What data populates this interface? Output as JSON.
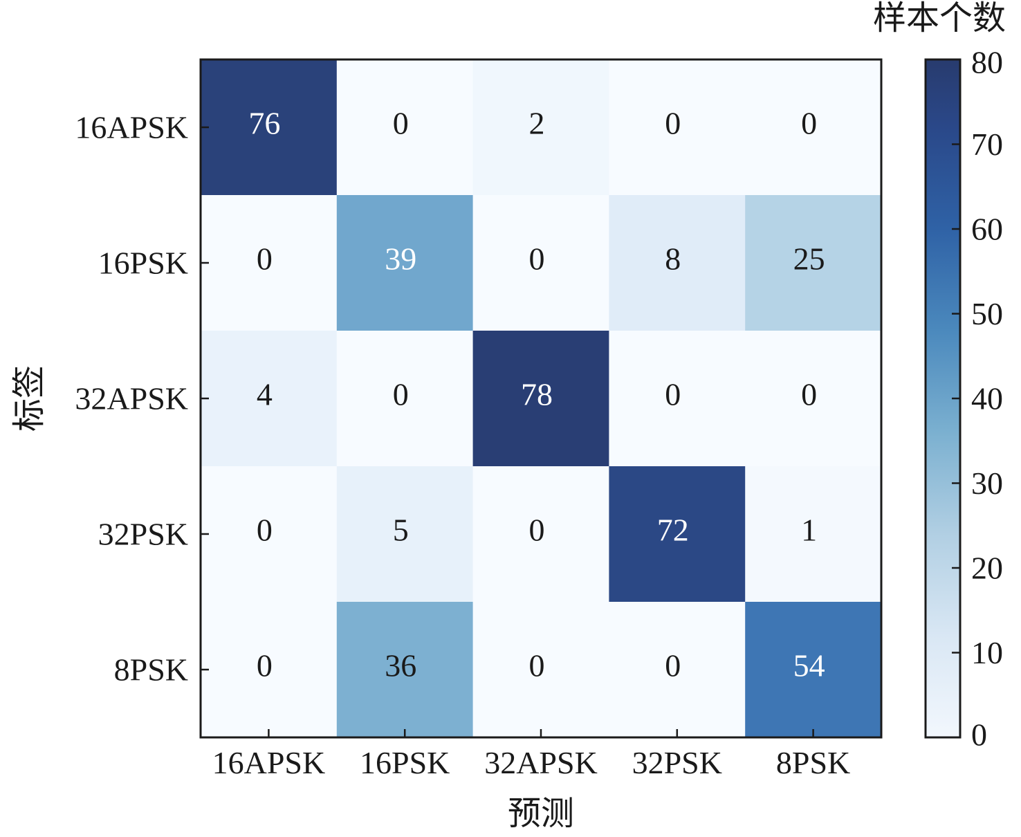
{
  "chart_data": {
    "type": "heatmap",
    "x_labels": [
      "16APSK",
      "16PSK",
      "32APSK",
      "32PSK",
      "8PSK"
    ],
    "y_labels": [
      "16APSK",
      "16PSK",
      "32APSK",
      "32PSK",
      "8PSK"
    ],
    "values": [
      [
        76,
        0,
        2,
        0,
        0
      ],
      [
        0,
        39,
        0,
        8,
        25
      ],
      [
        4,
        0,
        78,
        0,
        0
      ],
      [
        0,
        5,
        0,
        72,
        1
      ],
      [
        0,
        36,
        0,
        0,
        54
      ]
    ],
    "xlabel": "预测",
    "ylabel": "标签",
    "colorbar": {
      "title": "样本个数",
      "ticks": [
        "0",
        "10",
        "20",
        "30",
        "40",
        "50",
        "60",
        "70",
        "80"
      ],
      "range": [
        0,
        80
      ]
    },
    "colormap": "Blues",
    "colors": {
      "low": "#f7fbff",
      "high": "#283b6e"
    }
  }
}
